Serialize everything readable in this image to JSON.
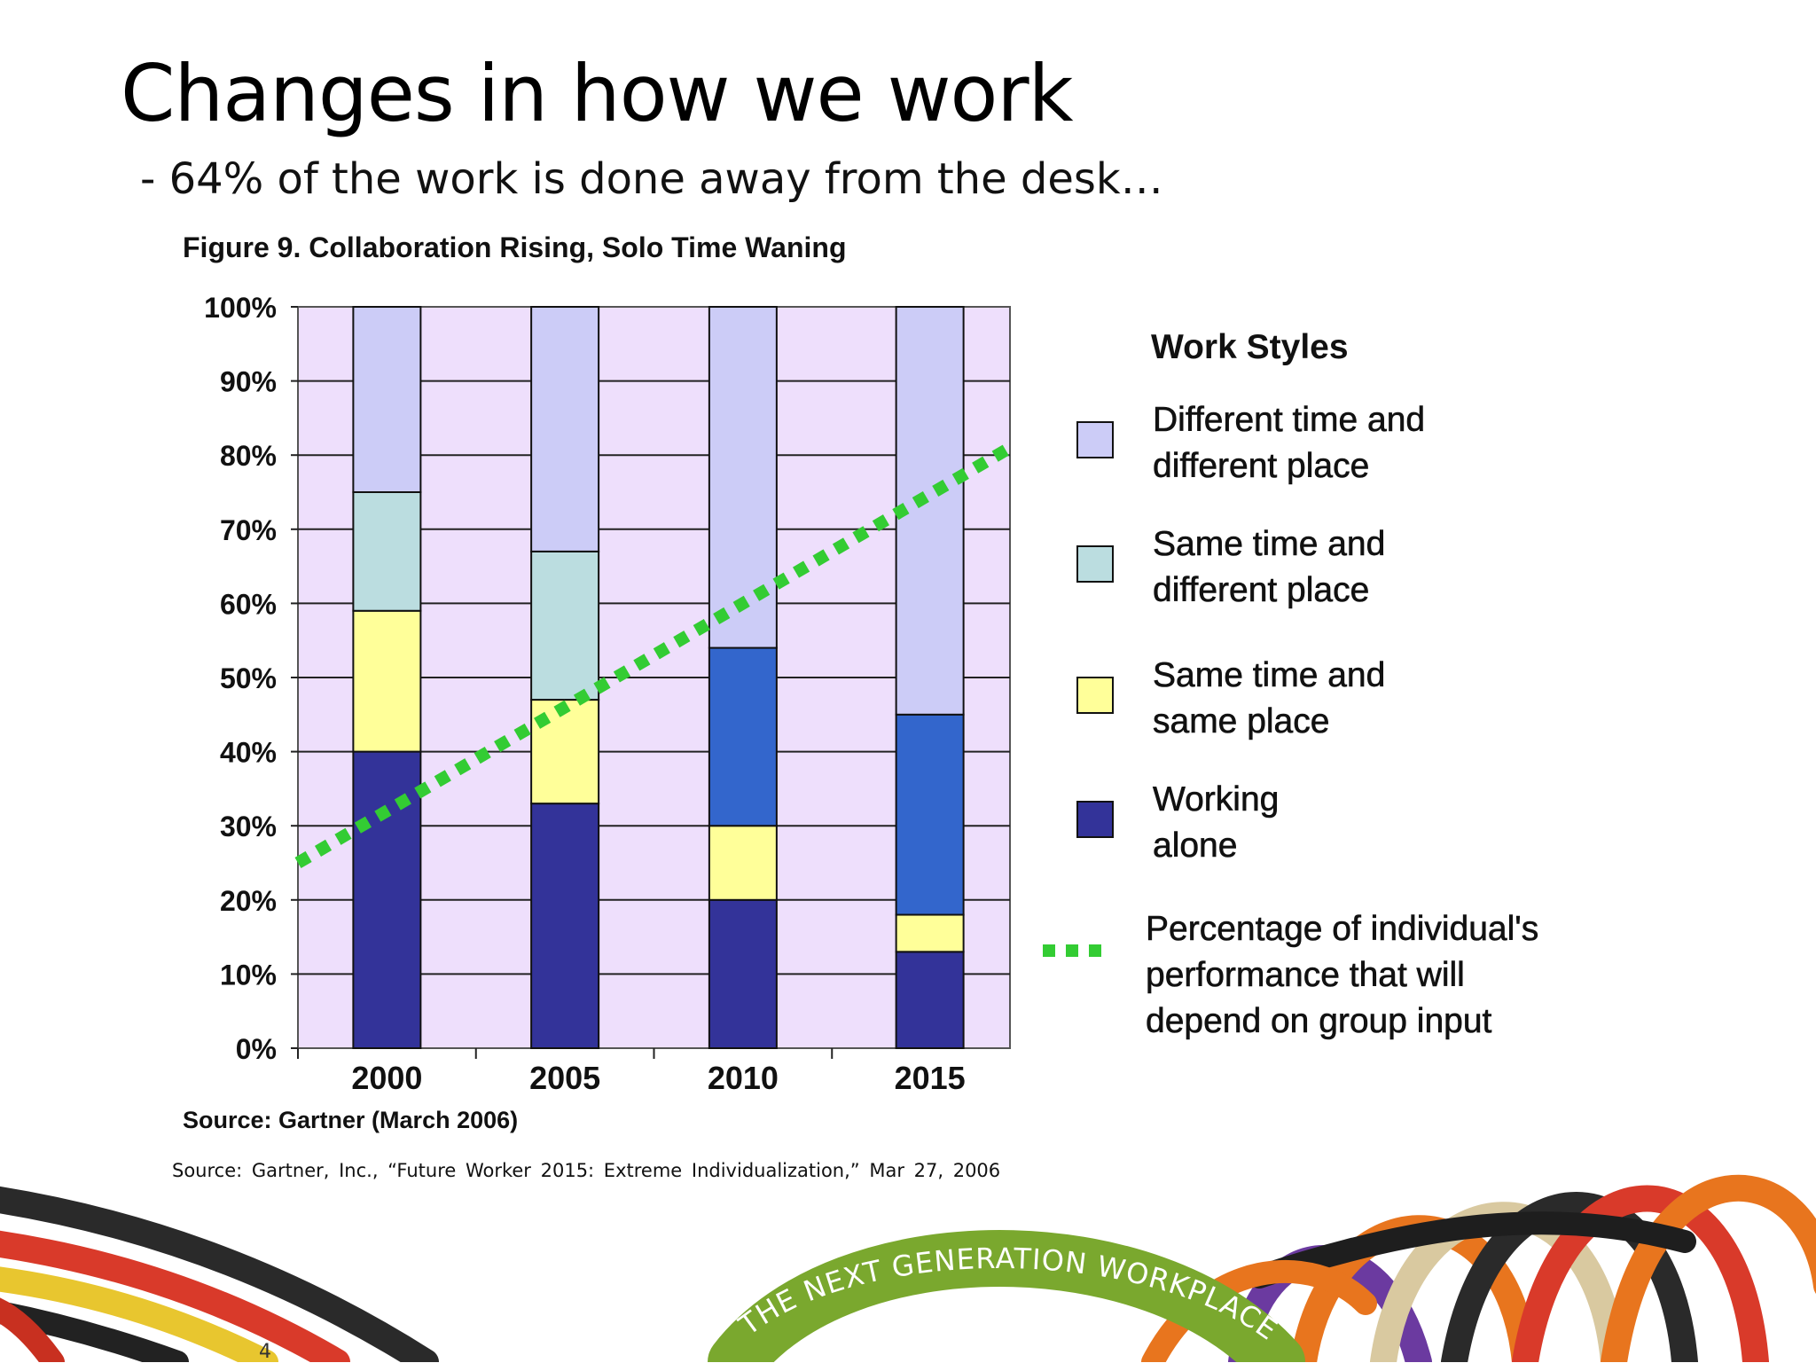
{
  "slide": {
    "title": "Changes in how we work",
    "subtitle": "- 64% of the work is done away from the desk…",
    "footnote": "Source:  Gartner,  Inc., “Future  Worker  2015: Extreme  Individualization,”  Mar  27,  2006",
    "page_number": "4",
    "tagline": "THE NEXT GENERATION WORKPLACE"
  },
  "chart_data": {
    "type": "bar",
    "stacked": true,
    "title": "Figure 9. Collaboration Rising, Solo Time Waning",
    "source": "Source: Gartner (March 2006)",
    "categories": [
      "2000",
      "2005",
      "2010",
      "2015"
    ],
    "ylim": [
      0,
      100
    ],
    "y_ticks": [
      "0%",
      "10%",
      "20%",
      "30%",
      "40%",
      "50%",
      "60%",
      "70%",
      "80%",
      "90%",
      "100%"
    ],
    "grid": true,
    "legend_title": "Work Styles",
    "legend_position": "right",
    "series": [
      {
        "name": "Working alone",
        "legend_lines": [
          "Working",
          "alone"
        ],
        "color": "#333399",
        "values": [
          40,
          33,
          20,
          13
        ]
      },
      {
        "name": "Same time and same place",
        "legend_lines": [
          "Same time and",
          "same place"
        ],
        "color": "#ffff99",
        "values": [
          19,
          14,
          10,
          5
        ]
      },
      {
        "name": "",
        "color": "#3366cc",
        "values": [
          0,
          0,
          24,
          27
        ]
      },
      {
        "name": "Same time and different place",
        "legend_lines": [
          "Same time and",
          "different place"
        ],
        "color": "#bbdde0",
        "values": [
          16,
          20,
          0,
          0
        ]
      },
      {
        "name": "Different time and different place",
        "legend_lines": [
          "Different time and",
          "different place"
        ],
        "color": "#ccccf7",
        "values": [
          25,
          33,
          46,
          55
        ]
      }
    ],
    "trend_line": {
      "name": "Percentage of individual's performance that will depend on group input",
      "legend_lines": [
        "Percentage of individual's",
        "performance that will",
        "depend on group input"
      ],
      "color": "#33cc33",
      "points": [
        {
          "x": "start",
          "y": 25
        },
        {
          "x": "end",
          "y": 81
        }
      ]
    },
    "colors": {
      "plot_background": "#eedffc"
    }
  }
}
